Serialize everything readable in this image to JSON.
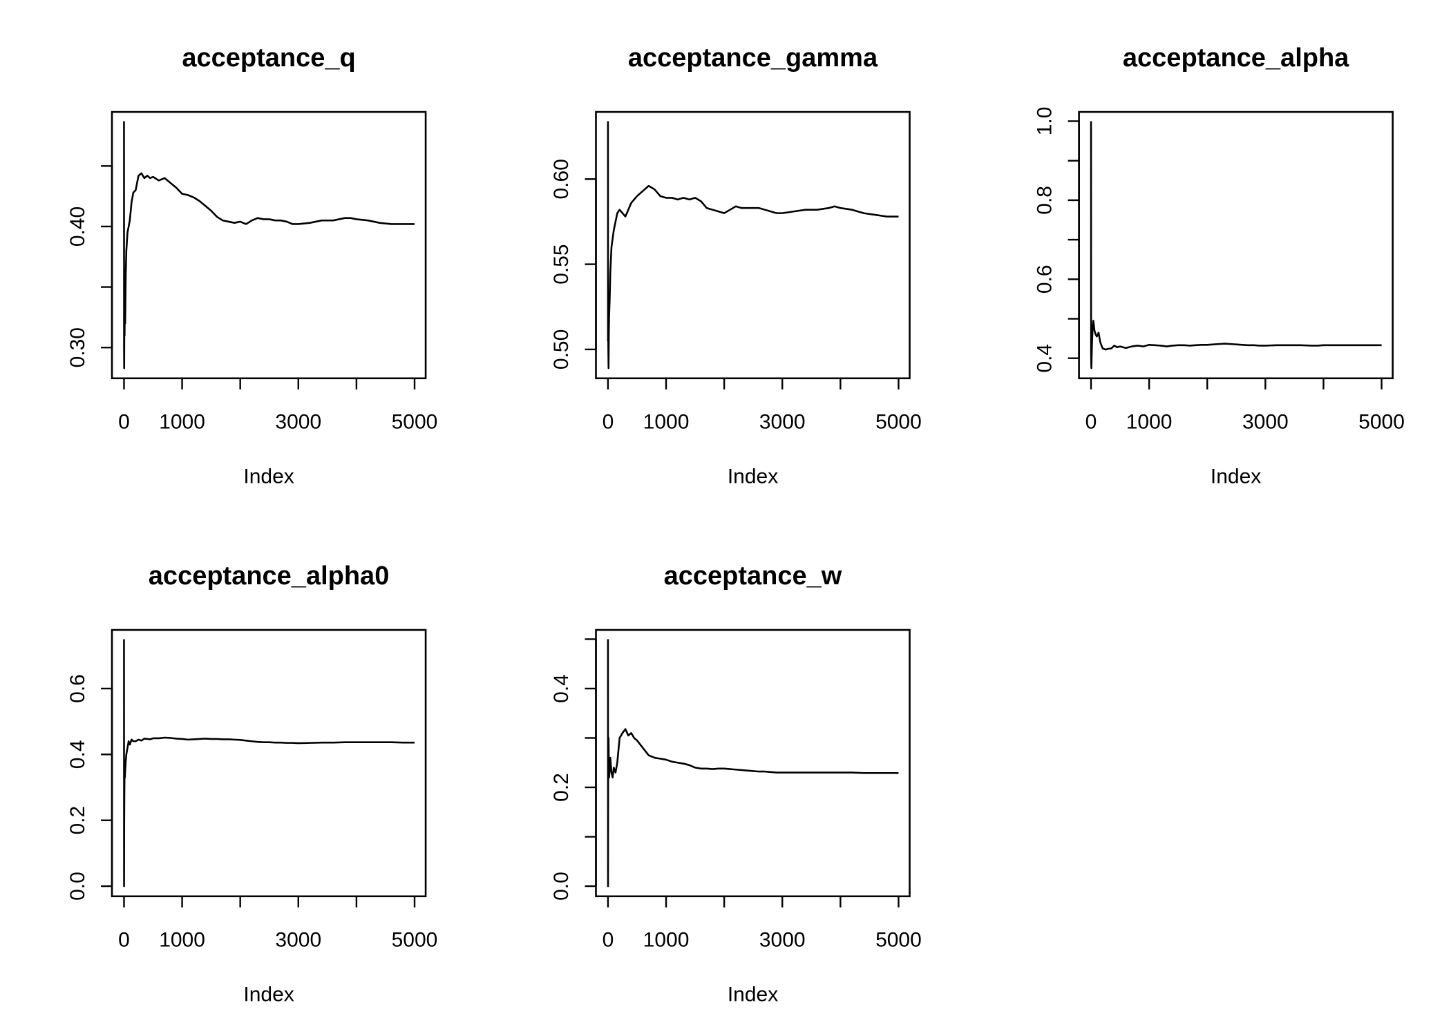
{
  "chart_data": [
    {
      "type": "line",
      "title": "acceptance_q",
      "xlabel": "Index",
      "ylabel": "",
      "xlim": [
        0,
        5000
      ],
      "ylim": [
        0.283,
        0.487
      ],
      "xticks": [
        0,
        1000,
        2000,
        3000,
        4000,
        5000
      ],
      "xtick_labels": [
        "0",
        "1000",
        "",
        "3000",
        "",
        "5000"
      ],
      "yticks": [
        0.3,
        0.35,
        0.4,
        0.45
      ],
      "ytick_labels": [
        "0.30",
        "",
        "0.40",
        ""
      ],
      "series": [
        {
          "x": [
            0,
            1,
            3,
            6,
            10,
            15,
            20,
            30,
            40,
            60,
            80,
            100,
            130,
            160,
            200,
            250,
            300,
            350,
            400,
            450,
            500,
            600,
            700,
            800,
            900,
            1000,
            1100,
            1200,
            1300,
            1400,
            1500,
            1600,
            1700,
            1800,
            1900,
            2000,
            2100,
            2200,
            2300,
            2400,
            2500,
            2600,
            2700,
            2800,
            2900,
            3000,
            3200,
            3400,
            3600,
            3800,
            3900,
            4000,
            4200,
            4400,
            4600,
            4800,
            5000
          ],
          "y": [
            0.487,
            0.3,
            0.283,
            0.33,
            0.31,
            0.35,
            0.32,
            0.36,
            0.38,
            0.395,
            0.4,
            0.405,
            0.42,
            0.428,
            0.43,
            0.442,
            0.444,
            0.44,
            0.442,
            0.44,
            0.441,
            0.438,
            0.44,
            0.436,
            0.432,
            0.427,
            0.426,
            0.424,
            0.421,
            0.417,
            0.413,
            0.408,
            0.405,
            0.404,
            0.403,
            0.404,
            0.402,
            0.405,
            0.407,
            0.406,
            0.406,
            0.405,
            0.405,
            0.404,
            0.402,
            0.402,
            0.403,
            0.405,
            0.405,
            0.407,
            0.407,
            0.406,
            0.405,
            0.403,
            0.402,
            0.402,
            0.402
          ]
        }
      ]
    },
    {
      "type": "line",
      "title": "acceptance_gamma",
      "xlabel": "Index",
      "ylabel": "",
      "xlim": [
        0,
        5000
      ],
      "ylim": [
        0.489,
        0.634
      ],
      "xticks": [
        0,
        1000,
        2000,
        3000,
        4000,
        5000
      ],
      "xtick_labels": [
        "0",
        "1000",
        "",
        "3000",
        "",
        "5000"
      ],
      "yticks": [
        0.5,
        0.55,
        0.6
      ],
      "ytick_labels": [
        "0.50",
        "0.55",
        "0.60"
      ],
      "series": [
        {
          "x": [
            0,
            1,
            3,
            6,
            10,
            15,
            20,
            30,
            40,
            60,
            80,
            100,
            130,
            160,
            200,
            250,
            300,
            350,
            400,
            450,
            500,
            600,
            700,
            800,
            900,
            1000,
            1100,
            1200,
            1300,
            1400,
            1500,
            1600,
            1700,
            1800,
            1900,
            2000,
            2100,
            2200,
            2300,
            2400,
            2500,
            2600,
            2700,
            2800,
            2900,
            3000,
            3200,
            3400,
            3600,
            3800,
            3900,
            4000,
            4200,
            4400,
            4600,
            4800,
            5000
          ],
          "y": [
            0.634,
            0.505,
            0.52,
            0.5,
            0.489,
            0.51,
            0.52,
            0.53,
            0.545,
            0.56,
            0.565,
            0.57,
            0.575,
            0.58,
            0.582,
            0.58,
            0.578,
            0.582,
            0.586,
            0.588,
            0.59,
            0.593,
            0.596,
            0.594,
            0.59,
            0.589,
            0.589,
            0.588,
            0.589,
            0.588,
            0.589,
            0.587,
            0.583,
            0.582,
            0.581,
            0.58,
            0.582,
            0.584,
            0.583,
            0.583,
            0.583,
            0.583,
            0.582,
            0.581,
            0.58,
            0.58,
            0.581,
            0.582,
            0.582,
            0.583,
            0.584,
            0.583,
            0.582,
            0.58,
            0.579,
            0.578,
            0.578
          ]
        }
      ]
    },
    {
      "type": "line",
      "title": "acceptance_alpha",
      "xlabel": "Index",
      "ylabel": "",
      "xlim": [
        0,
        5000
      ],
      "ylim": [
        0.375,
        1.0
      ],
      "xticks": [
        0,
        1000,
        2000,
        3000,
        4000,
        5000
      ],
      "xtick_labels": [
        "0",
        "1000",
        "",
        "3000",
        "",
        "5000"
      ],
      "yticks": [
        0.4,
        0.5,
        0.6,
        0.7,
        0.8,
        0.9,
        1.0
      ],
      "ytick_labels": [
        "0.4",
        "",
        "0.6",
        "",
        "0.8",
        "",
        "1.0"
      ],
      "series": [
        {
          "x": [
            0,
            1,
            3,
            6,
            10,
            15,
            20,
            30,
            40,
            60,
            80,
            100,
            130,
            160,
            200,
            250,
            300,
            350,
            400,
            450,
            500,
            600,
            700,
            800,
            900,
            1000,
            1100,
            1200,
            1300,
            1400,
            1500,
            1600,
            1700,
            1800,
            1900,
            2000,
            2100,
            2200,
            2300,
            2400,
            2500,
            2600,
            2700,
            2800,
            2900,
            3000,
            3200,
            3400,
            3600,
            3800,
            3900,
            4000,
            4200,
            4400,
            4600,
            4800,
            5000
          ],
          "y": [
            1.0,
            0.42,
            0.39,
            0.375,
            0.4,
            0.43,
            0.45,
            0.48,
            0.495,
            0.47,
            0.46,
            0.455,
            0.465,
            0.44,
            0.425,
            0.422,
            0.424,
            0.425,
            0.432,
            0.428,
            0.43,
            0.426,
            0.43,
            0.432,
            0.43,
            0.434,
            0.433,
            0.432,
            0.43,
            0.432,
            0.433,
            0.433,
            0.432,
            0.433,
            0.434,
            0.434,
            0.435,
            0.436,
            0.437,
            0.436,
            0.435,
            0.434,
            0.433,
            0.433,
            0.432,
            0.432,
            0.433,
            0.433,
            0.433,
            0.432,
            0.432,
            0.433,
            0.433,
            0.433,
            0.433,
            0.433,
            0.433
          ]
        }
      ]
    },
    {
      "type": "line",
      "title": "acceptance_alpha0",
      "xlabel": "Index",
      "ylabel": "",
      "xlim": [
        0,
        5000
      ],
      "ylim": [
        0.0,
        0.75
      ],
      "xticks": [
        0,
        1000,
        2000,
        3000,
        4000,
        5000
      ],
      "xtick_labels": [
        "0",
        "1000",
        "",
        "3000",
        "",
        "5000"
      ],
      "yticks": [
        0.0,
        0.2,
        0.4,
        0.6
      ],
      "ytick_labels": [
        "0.0",
        "0.2",
        "0.4",
        "0.6"
      ],
      "series": [
        {
          "x": [
            0,
            1,
            3,
            6,
            10,
            15,
            20,
            30,
            40,
            60,
            80,
            100,
            130,
            160,
            200,
            250,
            300,
            350,
            400,
            450,
            500,
            600,
            700,
            800,
            900,
            1000,
            1100,
            1200,
            1300,
            1400,
            1500,
            1600,
            1700,
            1800,
            1900,
            2000,
            2100,
            2200,
            2300,
            2400,
            2500,
            2600,
            2700,
            2800,
            2900,
            3000,
            3200,
            3400,
            3600,
            3800,
            3900,
            4000,
            4200,
            4400,
            4600,
            4800,
            5000
          ],
          "y": [
            0.75,
            0.0,
            0.19,
            0.28,
            0.36,
            0.33,
            0.35,
            0.38,
            0.4,
            0.42,
            0.44,
            0.43,
            0.445,
            0.44,
            0.44,
            0.445,
            0.442,
            0.448,
            0.447,
            0.446,
            0.449,
            0.449,
            0.451,
            0.45,
            0.448,
            0.447,
            0.445,
            0.446,
            0.447,
            0.448,
            0.447,
            0.447,
            0.446,
            0.446,
            0.445,
            0.444,
            0.442,
            0.44,
            0.438,
            0.437,
            0.437,
            0.436,
            0.436,
            0.435,
            0.435,
            0.434,
            0.435,
            0.436,
            0.436,
            0.437,
            0.437,
            0.437,
            0.437,
            0.437,
            0.437,
            0.436,
            0.436
          ]
        }
      ]
    },
    {
      "type": "line",
      "title": "acceptance_w",
      "xlabel": "Index",
      "ylabel": "",
      "xlim": [
        0,
        5000
      ],
      "ylim": [
        0.0,
        0.5
      ],
      "xticks": [
        0,
        1000,
        2000,
        3000,
        4000,
        5000
      ],
      "xtick_labels": [
        "0",
        "1000",
        "",
        "3000",
        "",
        "5000"
      ],
      "yticks": [
        0.0,
        0.1,
        0.2,
        0.3,
        0.4,
        0.5
      ],
      "ytick_labels": [
        "0.0",
        "",
        "0.2",
        "",
        "0.4",
        ""
      ],
      "series": [
        {
          "x": [
            0,
            1,
            3,
            6,
            10,
            15,
            20,
            30,
            40,
            60,
            80,
            100,
            130,
            160,
            200,
            250,
            300,
            350,
            400,
            450,
            500,
            600,
            700,
            800,
            900,
            1000,
            1100,
            1200,
            1300,
            1400,
            1500,
            1600,
            1700,
            1800,
            1900,
            2000,
            2100,
            2200,
            2300,
            2400,
            2500,
            2600,
            2700,
            2800,
            2900,
            3000,
            3200,
            3400,
            3600,
            3800,
            3900,
            4000,
            4200,
            4400,
            4600,
            4800,
            5000
          ],
          "y": [
            0.5,
            0.0,
            0.21,
            0.28,
            0.3,
            0.25,
            0.22,
            0.24,
            0.26,
            0.23,
            0.22,
            0.24,
            0.23,
            0.25,
            0.3,
            0.31,
            0.318,
            0.305,
            0.31,
            0.3,
            0.295,
            0.28,
            0.265,
            0.26,
            0.258,
            0.256,
            0.252,
            0.25,
            0.248,
            0.245,
            0.24,
            0.238,
            0.238,
            0.237,
            0.238,
            0.238,
            0.237,
            0.236,
            0.235,
            0.234,
            0.233,
            0.232,
            0.232,
            0.231,
            0.23,
            0.23,
            0.23,
            0.23,
            0.23,
            0.23,
            0.23,
            0.23,
            0.23,
            0.229,
            0.229,
            0.229,
            0.229
          ]
        }
      ]
    }
  ]
}
